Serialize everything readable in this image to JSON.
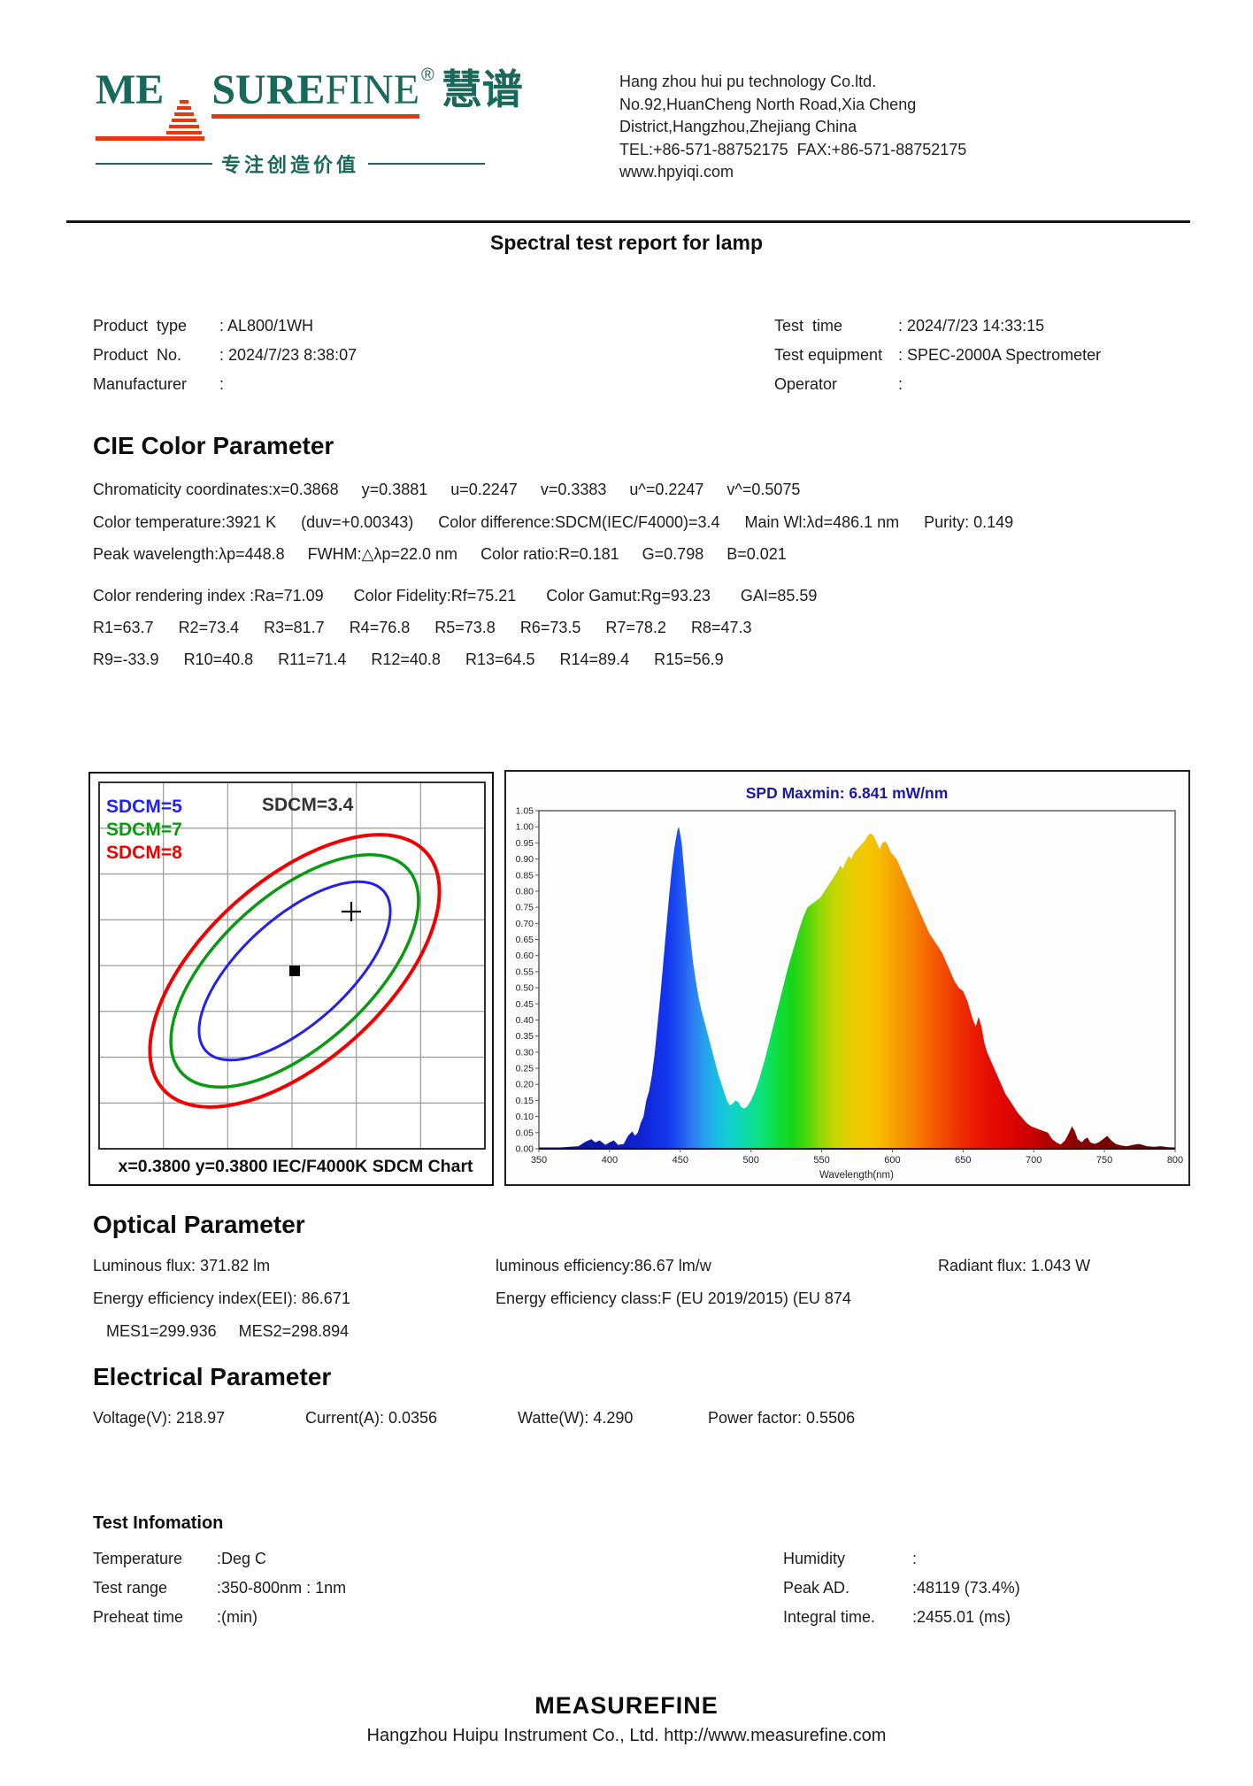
{
  "header": {
    "logo": {
      "me": "ME",
      "sure": "SURE",
      "fine": "FINE",
      "reg": "®",
      "cn": "慧谱",
      "tagline": "专注创造价值",
      "green": "#17695a",
      "orange": "#e8380d"
    },
    "company_lines": [
      "Hang zhou hui pu technology Co.ltd.",
      "No.92,HuanCheng North Road,Xia Cheng",
      "District,Hangzhou,Zhejiang China",
      "TEL:+86-571-88752175  FAX:+86-571-88752175",
      "www.hpyiqi.com"
    ]
  },
  "title": "Spectral test report for lamp",
  "product_info": {
    "left": [
      {
        "label": "Product  type",
        "value": ": AL800/1WH"
      },
      {
        "label": "Product  No.",
        "value": ": 2024/7/23 8:38:07"
      },
      {
        "label": "Manufacturer",
        "value": ":"
      }
    ],
    "right": [
      {
        "label": "Test  time",
        "value": ": 2024/7/23 14:33:15"
      },
      {
        "label": "Test equipment",
        "value": ": SPEC-2000A Spectrometer"
      },
      {
        "label": "Operator",
        "value": ":"
      }
    ]
  },
  "cie": {
    "heading": "CIE Color Parameter",
    "line1": [
      "Chromaticity coordinates:x=0.3868",
      "y=0.3881",
      "u=0.2247",
      "v=0.3383",
      "u^=0.2247",
      "v^=0.5075"
    ],
    "line2": [
      "Color temperature:3921 K",
      "(duv=+0.00343)",
      "Color difference:SDCM(IEC/F4000)=3.4",
      "Main Wl:λd=486.1 nm",
      "Purity: 0.149"
    ],
    "line3": [
      "Peak wavelength:λp=448.8",
      "FWHM:△λp=22.0 nm",
      "Color ratio:R=0.181",
      "G=0.798",
      "B=0.021"
    ],
    "cri_line": [
      "Color rendering index :Ra=71.09",
      "Color Fidelity:Rf=75.21",
      "Color Gamut:Rg=93.23",
      "GAI=85.59"
    ],
    "r_row1": [
      "R1=63.7",
      "R2=73.4",
      "R3=81.7",
      "R4=76.8",
      "R5=73.8",
      "R6=73.5",
      "R7=78.2",
      "R8=47.3"
    ],
    "r_row2": [
      "R9=-33.9",
      "R10=40.8",
      "R11=71.4",
      "R12=40.8",
      "R13=64.5",
      "R14=89.4",
      "R15=56.9"
    ]
  },
  "optical": {
    "heading": "Optical Parameter",
    "row1": [
      "Luminous flux: 371.82 lm",
      "luminous efficiency:86.67 lm/w",
      "Radiant flux: 1.043 W"
    ],
    "row2": [
      "Energy efficiency index(EEI): 86.671",
      "Energy efficiency class:F (EU 2019/2015) (EU 874",
      ""
    ],
    "row3": [
      "MES1=299.936",
      "MES2=298.894"
    ]
  },
  "electrical": {
    "heading": "Electrical Parameter",
    "row": [
      "Voltage(V): 218.97",
      "Current(A): 0.0356",
      "Watte(W): 4.290",
      "Power factor: 0.5506"
    ]
  },
  "test_info": {
    "heading": "Test Infomation",
    "left": [
      {
        "label": "Temperature",
        "value": ":Deg C"
      },
      {
        "label": "Test range",
        "value": ":350-800nm : 1nm"
      },
      {
        "label": "Preheat  time",
        "value": ":(min)"
      }
    ],
    "right": [
      {
        "label": "Humidity",
        "value": ":"
      },
      {
        "label": "Peak  AD.",
        "value": ":48119 (73.4%)"
      },
      {
        "label": "Integral  time.",
        "value": ":2455.01 (ms)"
      }
    ]
  },
  "footer": {
    "brand": "MEASUREFINE",
    "line": "Hangzhou Huipu Instrument Co., Ltd. http://www.measurefine.com"
  },
  "chart_data": [
    {
      "type": "sdcm_ellipse_chart",
      "annotation": "SDCM=3.4",
      "caption": "x=0.3800   y=0.3800   IEC/F4000K  SDCM Chart",
      "legend": [
        {
          "label": "SDCM=5",
          "color": "#2222e6"
        },
        {
          "label": "SDCM=7",
          "color": "#089a10"
        },
        {
          "label": "SDCM=8",
          "color": "#f20000"
        }
      ],
      "ellipses": [
        {
          "name": "SDCM=5",
          "color": "#2222e6",
          "a": 135,
          "b": 60,
          "width": 3
        },
        {
          "name": "SDCM=7",
          "color": "#089a10",
          "a": 172,
          "b": 85,
          "width": 3.5
        },
        {
          "name": "SDCM=8",
          "color": "#f20000",
          "a": 200,
          "b": 102,
          "width": 4
        }
      ],
      "rotation_deg": -42,
      "center_point": {
        "x": 0.38,
        "y": 0.38
      },
      "test_point_offset": {
        "dx": 64,
        "dy": -67
      },
      "grid": {
        "cols": 6,
        "rows": 8
      },
      "grid_color": "#9a9a9a"
    },
    {
      "type": "area",
      "title": "SPD Maxmin: 6.841 mW/nm",
      "title_color": "#1a17a8",
      "xlabel": "Wavelength(nm)",
      "xlim": [
        350,
        800
      ],
      "xtick_step": 50,
      "ylim": [
        0,
        1.05
      ],
      "ytick_step": 0.05,
      "points": [
        [
          350,
          0.004
        ],
        [
          365,
          0.004
        ],
        [
          378,
          0.008
        ],
        [
          383,
          0.022
        ],
        [
          387,
          0.03
        ],
        [
          390,
          0.02
        ],
        [
          393,
          0.026
        ],
        [
          397,
          0.012
        ],
        [
          400,
          0.02
        ],
        [
          403,
          0.026
        ],
        [
          406,
          0.012
        ],
        [
          410,
          0.015
        ],
        [
          413,
          0.04
        ],
        [
          416,
          0.054
        ],
        [
          418,
          0.04
        ],
        [
          420,
          0.05
        ],
        [
          422,
          0.08
        ],
        [
          424,
          0.1
        ],
        [
          426,
          0.15
        ],
        [
          428,
          0.18
        ],
        [
          430,
          0.23
        ],
        [
          432,
          0.3
        ],
        [
          434,
          0.39
        ],
        [
          436,
          0.48
        ],
        [
          438,
          0.58
        ],
        [
          440,
          0.68
        ],
        [
          442,
          0.78
        ],
        [
          444,
          0.87
        ],
        [
          446,
          0.94
        ],
        [
          448,
          0.99
        ],
        [
          449,
          1.0
        ],
        [
          451,
          0.95
        ],
        [
          453,
          0.85
        ],
        [
          455,
          0.75
        ],
        [
          457,
          0.66
        ],
        [
          459,
          0.58
        ],
        [
          461,
          0.52
        ],
        [
          463,
          0.47
        ],
        [
          465,
          0.43
        ],
        [
          468,
          0.38
        ],
        [
          471,
          0.33
        ],
        [
          474,
          0.28
        ],
        [
          477,
          0.23
        ],
        [
          480,
          0.19
        ],
        [
          483,
          0.15
        ],
        [
          485,
          0.135
        ],
        [
          487,
          0.14
        ],
        [
          489,
          0.15
        ],
        [
          491,
          0.145
        ],
        [
          493,
          0.13
        ],
        [
          495,
          0.125
        ],
        [
          497,
          0.13
        ],
        [
          500,
          0.15
        ],
        [
          503,
          0.18
        ],
        [
          506,
          0.22
        ],
        [
          510,
          0.28
        ],
        [
          514,
          0.35
        ],
        [
          518,
          0.42
        ],
        [
          522,
          0.49
        ],
        [
          526,
          0.56
        ],
        [
          530,
          0.62
        ],
        [
          534,
          0.68
        ],
        [
          537,
          0.72
        ],
        [
          540,
          0.75
        ],
        [
          543,
          0.76
        ],
        [
          546,
          0.77
        ],
        [
          549,
          0.78
        ],
        [
          552,
          0.8
        ],
        [
          555,
          0.82
        ],
        [
          558,
          0.84
        ],
        [
          561,
          0.86
        ],
        [
          563,
          0.88
        ],
        [
          565,
          0.87
        ],
        [
          567,
          0.89
        ],
        [
          569,
          0.91
        ],
        [
          571,
          0.9
        ],
        [
          573,
          0.92
        ],
        [
          575,
          0.93
        ],
        [
          577,
          0.94
        ],
        [
          579,
          0.95
        ],
        [
          581,
          0.96
        ],
        [
          583,
          0.975
        ],
        [
          585,
          0.98
        ],
        [
          587,
          0.97
        ],
        [
          589,
          0.95
        ],
        [
          591,
          0.93
        ],
        [
          593,
          0.95
        ],
        [
          595,
          0.955
        ],
        [
          597,
          0.94
        ],
        [
          599,
          0.92
        ],
        [
          601,
          0.91
        ],
        [
          603,
          0.9
        ],
        [
          605,
          0.88
        ],
        [
          608,
          0.85
        ],
        [
          611,
          0.82
        ],
        [
          614,
          0.79
        ],
        [
          617,
          0.76
        ],
        [
          620,
          0.73
        ],
        [
          623,
          0.7
        ],
        [
          626,
          0.67
        ],
        [
          629,
          0.65
        ],
        [
          632,
          0.63
        ],
        [
          635,
          0.61
        ],
        [
          638,
          0.58
        ],
        [
          641,
          0.55
        ],
        [
          644,
          0.52
        ],
        [
          647,
          0.5
        ],
        [
          650,
          0.49
        ],
        [
          653,
          0.46
        ],
        [
          655,
          0.43
        ],
        [
          657,
          0.4
        ],
        [
          659,
          0.38
        ],
        [
          661,
          0.41
        ],
        [
          663,
          0.38
        ],
        [
          665,
          0.33
        ],
        [
          667,
          0.3
        ],
        [
          669,
          0.28
        ],
        [
          671,
          0.26
        ],
        [
          674,
          0.23
        ],
        [
          677,
          0.2
        ],
        [
          680,
          0.17
        ],
        [
          683,
          0.15
        ],
        [
          686,
          0.13
        ],
        [
          689,
          0.11
        ],
        [
          692,
          0.095
        ],
        [
          695,
          0.08
        ],
        [
          698,
          0.07
        ],
        [
          701,
          0.065
        ],
        [
          704,
          0.06
        ],
        [
          707,
          0.055
        ],
        [
          710,
          0.05
        ],
        [
          713,
          0.03
        ],
        [
          716,
          0.02
        ],
        [
          719,
          0.013
        ],
        [
          722,
          0.025
        ],
        [
          725,
          0.05
        ],
        [
          727,
          0.07
        ],
        [
          729,
          0.055
        ],
        [
          731,
          0.03
        ],
        [
          734,
          0.02
        ],
        [
          736,
          0.03
        ],
        [
          738,
          0.035
        ],
        [
          740,
          0.02
        ],
        [
          743,
          0.015
        ],
        [
          746,
          0.02
        ],
        [
          749,
          0.03
        ],
        [
          752,
          0.04
        ],
        [
          755,
          0.025
        ],
        [
          758,
          0.015
        ],
        [
          762,
          0.01
        ],
        [
          766,
          0.008
        ],
        [
          770,
          0.012
        ],
        [
          774,
          0.015
        ],
        [
          777,
          0.012
        ],
        [
          780,
          0.008
        ],
        [
          785,
          0.006
        ],
        [
          790,
          0.008
        ],
        [
          795,
          0.005
        ],
        [
          800,
          0.004
        ]
      ],
      "spectrum_stops": [
        [
          350,
          "#0d0d96"
        ],
        [
          405,
          "#0f17b4"
        ],
        [
          425,
          "#1126d8"
        ],
        [
          440,
          "#1236ee"
        ],
        [
          450,
          "#1e55f2"
        ],
        [
          458,
          "#2e79f2"
        ],
        [
          468,
          "#27a2ec"
        ],
        [
          478,
          "#17c2e2"
        ],
        [
          488,
          "#0fd4c4"
        ],
        [
          498,
          "#0cdca0"
        ],
        [
          508,
          "#0ce276"
        ],
        [
          518,
          "#0ede44"
        ],
        [
          528,
          "#14d61a"
        ],
        [
          538,
          "#44d60c"
        ],
        [
          548,
          "#8ad806"
        ],
        [
          558,
          "#bed604"
        ],
        [
          568,
          "#e0d002"
        ],
        [
          578,
          "#f0ca02"
        ],
        [
          588,
          "#f6c002"
        ],
        [
          598,
          "#f6aa02"
        ],
        [
          608,
          "#f69302"
        ],
        [
          618,
          "#f67a02"
        ],
        [
          628,
          "#f65e02"
        ],
        [
          638,
          "#f24602"
        ],
        [
          648,
          "#ee3002"
        ],
        [
          658,
          "#ea1c02"
        ],
        [
          668,
          "#e60e02"
        ],
        [
          682,
          "#de0404"
        ],
        [
          696,
          "#cc0202"
        ],
        [
          712,
          "#ac0000"
        ],
        [
          728,
          "#8e0000"
        ],
        [
          748,
          "#7c0000"
        ],
        [
          770,
          "#6c0000"
        ],
        [
          800,
          "#5a0000"
        ]
      ],
      "legend_position": "none",
      "grid": false
    }
  ]
}
